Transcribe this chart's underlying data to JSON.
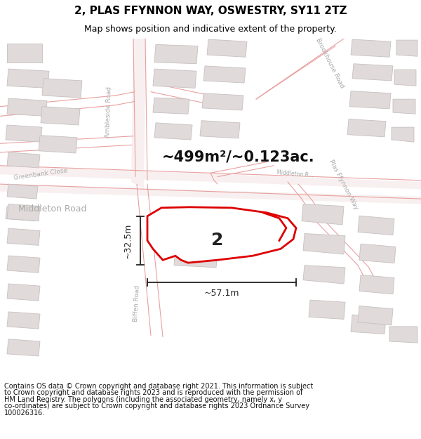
{
  "title_line1": "2, PLAS FFYNNON WAY, OSWESTRY, SY11 2TZ",
  "title_line2": "Map shows position and indicative extent of the property.",
  "area_text": "~499m²/~0.123ac.",
  "dim_width": "~57.1m",
  "dim_height": "~32.5m",
  "plot_number": "2",
  "footer_lines": [
    "Contains OS data © Crown copyright and database right 2021. This information is subject",
    "to Crown copyright and database rights 2023 and is reproduced with the permission of",
    "HM Land Registry. The polygons (including the associated geometry, namely x, y",
    "co-ordinates) are subject to Crown copyright and database rights 2023 Ordnance Survey",
    "100026316."
  ],
  "map_bg": "#ffffff",
  "road_fill": "#f5e8e8",
  "road_stroke": "#e8a0a0",
  "building_fill": "#e0dada",
  "building_stroke": "#c8c0c0",
  "property_stroke": "#dd0000",
  "dim_color": "#222222",
  "label_color": "#aaaaaa",
  "road_lw": 0.7,
  "prop_lw": 2.0,
  "title_fs": 11,
  "subtitle_fs": 9,
  "area_fs": 15,
  "dim_fs": 9,
  "label_fs": 7,
  "plot_fs": 18,
  "footer_fs": 7
}
